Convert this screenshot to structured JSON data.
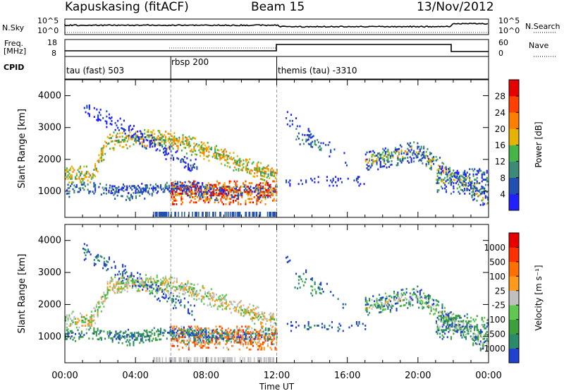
{
  "header": {
    "title": "Kapuskasing (fitACF)",
    "beam": "Beam 15",
    "date": "13/Nov/2012"
  },
  "strips": {
    "nsky_label": "N.Sky",
    "nsky_ticks": [
      "10^5",
      "10^0"
    ],
    "nsearch_label": "N.Search",
    "nsearch_ticks": [
      "10^5",
      "10^0"
    ],
    "freq_label_1": "Freq.",
    "freq_label_2": "[MHz]",
    "freq_ticks": [
      "18",
      "8"
    ],
    "nave_label": "Nave",
    "nave_ticks": [
      "60",
      "0"
    ],
    "cpid_label": "CPID",
    "cpid_segments": [
      {
        "label": "tau (fast) 503",
        "start_h": 0,
        "end_h": 6
      },
      {
        "label": "rbsp 200",
        "start_h": 6,
        "end_h": 12
      },
      {
        "label": "themis (tau) -3310",
        "start_h": 12,
        "end_h": 24
      }
    ]
  },
  "chart_data": [
    {
      "type": "heatmap",
      "name": "power",
      "ylabel": "Slant Range [km]",
      "yticks": [
        1000,
        2000,
        3000,
        4000
      ],
      "ylim": [
        180,
        4500
      ],
      "xlim_hours": [
        0,
        24
      ],
      "colorbar_label": "Power [dB]",
      "colorbar_ticks": [
        "4",
        "8",
        "12",
        "16",
        "20",
        "24",
        "28"
      ],
      "colorbar_range": [
        0,
        30
      ],
      "colors": [
        "#2020ff",
        "#2050b0",
        "#3c8a78",
        "#46b446",
        "#e6b400",
        "#ff8000",
        "#ff4000",
        "#e60000"
      ]
    },
    {
      "type": "heatmap",
      "name": "velocity",
      "ylabel": "Slant Range [km]",
      "yticks": [
        1000,
        2000,
        3000,
        4000
      ],
      "ylim": [
        180,
        4500
      ],
      "xlim_hours": [
        0,
        24
      ],
      "xlabel": "Time UT",
      "xticks": [
        "00:00",
        "04:00",
        "08:00",
        "12:00",
        "16:00",
        "20:00",
        "00:00"
      ],
      "colorbar_label_main": "Velocity",
      "colorbar_label_unit": "[m s⁻¹]",
      "colorbar_ticks": [
        "1000",
        "500",
        "100",
        "25",
        "-25",
        "-100",
        "-500",
        "-1000"
      ],
      "colors": [
        "#2040d0",
        "#2a8a6a",
        "#3ca03c",
        "#60c850",
        "#c0c0c0",
        "#ff9a1a",
        "#ff7000",
        "#ff3000",
        "#e60000"
      ]
    }
  ]
}
